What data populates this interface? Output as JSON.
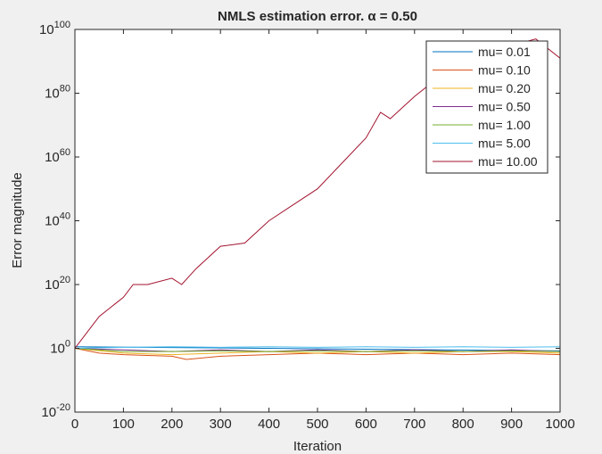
{
  "chart_data": {
    "type": "line",
    "title": "NMLS estimation error. α = 0.50",
    "xlabel": "Iteration",
    "ylabel": "Error magnitude",
    "xlim": [
      0,
      1000
    ],
    "ylim_exponent": [
      -20,
      100
    ],
    "y_scale": "log",
    "grid": false,
    "legend_position": "top-right",
    "x_ticks": [
      "0",
      "100",
      "200",
      "300",
      "400",
      "500",
      "600",
      "700",
      "800",
      "900",
      "1000"
    ],
    "y_ticks": [
      {
        "base": "10",
        "exp": "-20"
      },
      {
        "base": "10",
        "exp": "0"
      },
      {
        "base": "10",
        "exp": "20"
      },
      {
        "base": "10",
        "exp": "40"
      },
      {
        "base": "10",
        "exp": "60"
      },
      {
        "base": "10",
        "exp": "80"
      },
      {
        "base": "10",
        "exp": "100"
      }
    ],
    "series": [
      {
        "name": "mu= 0.01",
        "color": "#0072bd",
        "log10_x": [
          0,
          1000
        ],
        "log10_y": [
          0.5,
          -0.8
        ]
      },
      {
        "name": "mu= 0.10",
        "color": "#d95319",
        "log10_x": [
          0,
          50,
          100,
          200,
          230,
          300,
          400,
          500,
          600,
          700,
          800,
          900,
          1000
        ],
        "log10_y": [
          0,
          -1.5,
          -2,
          -2.5,
          -3.5,
          -2.5,
          -2,
          -1.5,
          -2,
          -1.5,
          -2,
          -1.5,
          -2
        ]
      },
      {
        "name": "mu= 0.20",
        "color": "#edb120",
        "log10_x": [
          0,
          100,
          200,
          300,
          400,
          500,
          600,
          700,
          800,
          900,
          1000
        ],
        "log10_y": [
          0,
          -1.5,
          -2,
          -1.5,
          -1,
          -1.5,
          -1,
          -1.5,
          -1,
          -1,
          -1.5
        ]
      },
      {
        "name": "mu= 0.50",
        "color": "#7e2f8e",
        "log10_x": [
          0,
          100,
          200,
          300,
          400,
          500,
          600,
          700,
          800,
          900,
          1000
        ],
        "log10_y": [
          0,
          -0.5,
          -1,
          -0.5,
          -1,
          -0.5,
          -1,
          -0.5,
          -1,
          -0.5,
          -1
        ]
      },
      {
        "name": "mu= 1.00",
        "color": "#77ac30",
        "log10_x": [
          0,
          100,
          200,
          300,
          400,
          500,
          600,
          700,
          800,
          900,
          1000
        ],
        "log10_y": [
          0,
          -1,
          -1,
          -0.8,
          -1,
          -0.8,
          -1,
          -0.8,
          -1,
          -0.8,
          -1
        ]
      },
      {
        "name": "mu= 5.00",
        "color": "#4dbeee",
        "log10_x": [
          0,
          100,
          200,
          300,
          400,
          500,
          600,
          700,
          800,
          900,
          1000
        ],
        "log10_y": [
          0,
          0.3,
          0.5,
          0.3,
          0.5,
          0.3,
          0.5,
          0.3,
          0.5,
          0.3,
          0.5
        ]
      },
      {
        "name": "mu= 10.00",
        "color": "#a2142f",
        "log10_x": [
          0,
          20,
          50,
          100,
          120,
          150,
          200,
          220,
          250,
          300,
          350,
          400,
          450,
          500,
          550,
          600,
          630,
          650,
          700,
          750,
          800,
          850,
          900,
          950,
          1000
        ],
        "log10_y": [
          0,
          4,
          10,
          16,
          20,
          20,
          22,
          20,
          25,
          32,
          33,
          40,
          45,
          50,
          58,
          66,
          74,
          72,
          79,
          85,
          89,
          90,
          95,
          97,
          91
        ]
      }
    ]
  }
}
